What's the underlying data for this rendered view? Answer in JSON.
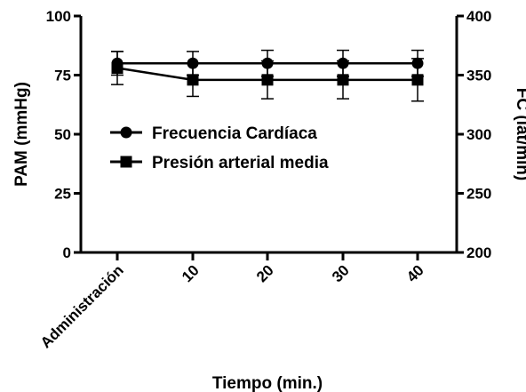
{
  "chart_data": {
    "type": "line",
    "categories": [
      "Administración",
      "10",
      "20",
      "30",
      "40"
    ],
    "xlabel": "Tiempo (min.)",
    "ylabel_left": "PAM (mmHg)",
    "ylabel_right": "FC (lat/min)",
    "left_axis": {
      "ylim": [
        0,
        100
      ],
      "ticks": [
        0,
        25,
        50,
        75,
        100
      ]
    },
    "right_axis": {
      "ylim": [
        200,
        400
      ],
      "ticks": [
        200,
        250,
        300,
        350,
        400
      ]
    },
    "legend_position": "center-left",
    "series": [
      {
        "name": "Frecuencia Cardíaca",
        "axis": "right",
        "marker": "circle",
        "values": [
          360,
          360,
          360,
          360,
          360
        ],
        "error": [
          10,
          10,
          11,
          11,
          11
        ]
      },
      {
        "name": "Presión arterial media",
        "axis": "left",
        "marker": "square",
        "values": [
          78,
          73,
          73,
          73,
          73
        ],
        "error": [
          7,
          7,
          8,
          8,
          9
        ]
      }
    ]
  }
}
